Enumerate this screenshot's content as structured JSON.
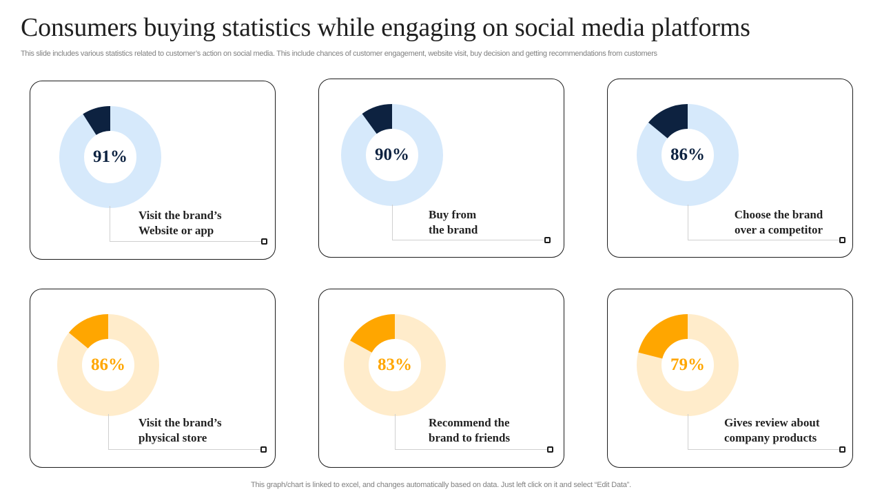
{
  "header": {
    "title": "Consumers buying statistics while engaging on social media platforms",
    "subtitle": "This slide includes various statistics related to customer’s action on social media. This include chances of customer engagement, website visit, buy decision and getting recommendations from customers"
  },
  "footer": {
    "note": "This graph/chart is linked to excel,  and changes automatically based on data. Just left click on it and select “Edit Data”."
  },
  "colors": {
    "navy": "#0d2240",
    "light_blue": "#d6e9fb",
    "orange": "#ffa600",
    "light_orange": "#ffeccb"
  },
  "chart_data": [
    {
      "type": "pie",
      "title": "Visit the brand’s Website or app",
      "label_lines": [
        "Visit the brand’s",
        "Website or app"
      ],
      "value_label": "91%",
      "value": 91,
      "remainder": 9,
      "palette": "blue"
    },
    {
      "type": "pie",
      "title": "Buy from the brand",
      "label_lines": [
        "Buy from",
        "the brand"
      ],
      "value_label": "90%",
      "value": 90,
      "remainder": 10,
      "palette": "blue"
    },
    {
      "type": "pie",
      "title": "Choose the brand over a competitor",
      "label_lines": [
        "Choose the brand",
        "over a competitor"
      ],
      "value_label": "86%",
      "value": 86,
      "remainder": 14,
      "palette": "blue"
    },
    {
      "type": "pie",
      "title": "Visit the brand’s physical store",
      "label_lines": [
        "Visit the brand’s",
        "physical store"
      ],
      "value_label": "86%",
      "value": 86,
      "remainder": 14,
      "palette": "orange"
    },
    {
      "type": "pie",
      "title": "Recommend the brand to friends",
      "label_lines": [
        "Recommend the",
        "brand to friends"
      ],
      "value_label": "83%",
      "value": 83,
      "remainder": 17,
      "palette": "orange"
    },
    {
      "type": "pie",
      "title": "Gives review about company products",
      "label_lines": [
        "Gives review about",
        "company products"
      ],
      "value_label": "79%",
      "value": 79,
      "remainder": 21,
      "palette": "orange"
    }
  ]
}
